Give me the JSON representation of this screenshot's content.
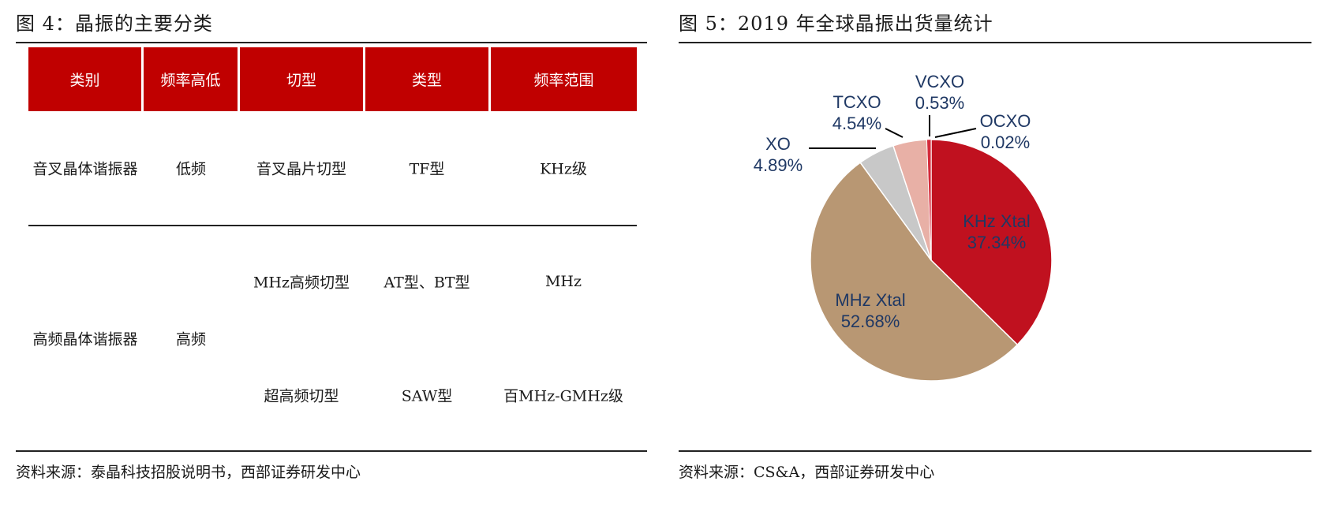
{
  "left": {
    "figure_title": "图 4：晶振的主要分类",
    "table": {
      "headers": [
        "类别",
        "频率高低",
        "切型",
        "类型",
        "频率范围"
      ],
      "row1": {
        "category": "音叉晶体谐振器",
        "freq": "低频",
        "cut": "音叉晶片切型",
        "type": "TF型",
        "range": "KHz级"
      },
      "row2": {
        "category": "高频晶体谐振器",
        "freq": "高频",
        "sub1": {
          "cut": "MHz高频切型",
          "type": "AT型、BT型",
          "range": "MHz"
        },
        "sub2": {
          "cut": "超高频切型",
          "type": "SAW型",
          "range": "百MHz-GMHz级"
        }
      }
    },
    "source": "资料来源：泰晶科技招股说明书，西部证券研发中心"
  },
  "right": {
    "figure_title": "图 5：2019 年全球晶振出货量统计",
    "source": "资料来源：CS&A，西部证券研发中心"
  },
  "chart_data": {
    "type": "pie",
    "title": "",
    "start_angle_deg": 0,
    "direction": "clockwise",
    "slices": [
      {
        "name": "KHz Xtal",
        "value": 37.34,
        "label": "37.34%",
        "color": "#c0111f",
        "label_position": "inside"
      },
      {
        "name": "MHz Xtal",
        "value": 52.68,
        "label": "52.68%",
        "color": "#b89773",
        "label_position": "inside"
      },
      {
        "name": "XO",
        "value": 4.89,
        "label": "4.89%",
        "color": "#c8c8c8",
        "label_position": "outside-left"
      },
      {
        "name": "TCXO",
        "value": 4.54,
        "label": "4.54%",
        "color": "#e8b0a6",
        "label_position": "outside-top"
      },
      {
        "name": "VCXO",
        "value": 0.53,
        "label": "0.53%",
        "color": "#d42a3a",
        "label_position": "outside-top"
      },
      {
        "name": "OCXO",
        "value": 0.02,
        "label": "0.02%",
        "color": "#8b0000",
        "label_position": "outside-right"
      }
    ],
    "label_color": "#1f3864"
  }
}
